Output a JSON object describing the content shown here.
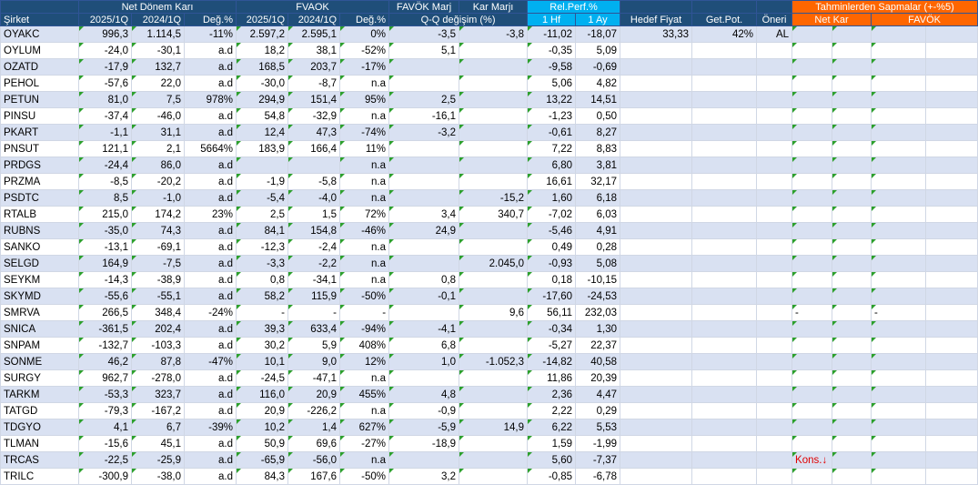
{
  "headers": {
    "group": {
      "net_kar": "Net Dönem Karı",
      "favok": "FVAOK",
      "favok_marj": "FAVÖK Marj",
      "kar_marj": "Kar Marjı",
      "rel_perf": "Rel.Perf.%",
      "tahmin": "Tahminlerden Sapmalar (+-%5)"
    },
    "sub": {
      "sirket": "Şirket",
      "q1_2025": "2025/1Q",
      "q1_2024": "2024/1Q",
      "deg": "Değ.%",
      "fq1_2025": "2025/1Q",
      "fq1_2024": "2024/1Q",
      "fdeg": "Değ.%",
      "qq": "Q-Q değişim (%)",
      "hf1": "1 Hf",
      "ay1": "1 Ay",
      "hedef": "Hedef Fiyat",
      "getpot": "Get.Pot.",
      "oneri": "Öneri",
      "netkar": "Net Kar",
      "favok2": "FAVÖK"
    }
  },
  "rows": [
    {
      "name": "OYAKC",
      "nk25": "996,3",
      "nk24": "1.114,5",
      "nkd": "-11%",
      "fv25": "2.597,2",
      "fv24": "2.595,1",
      "fvd": "0%",
      "fm": "-3,5",
      "km": "-3,8",
      "hf": "-11,02",
      "ay": "-18,07",
      "hedef": "33,33",
      "getpot": "42%",
      "oneri": "AL",
      "netkar": "",
      "favok": ""
    },
    {
      "name": "OYLUM",
      "nk25": "-24,0",
      "nk24": "-30,1",
      "nkd": "a.d",
      "fv25": "18,2",
      "fv24": "38,1",
      "fvd": "-52%",
      "fm": "5,1",
      "km": "",
      "hf": "-0,35",
      "ay": "5,09",
      "hedef": "",
      "getpot": "",
      "oneri": "",
      "netkar": "",
      "favok": ""
    },
    {
      "name": "OZATD",
      "nk25": "-17,9",
      "nk24": "132,7",
      "nkd": "a.d",
      "fv25": "168,5",
      "fv24": "203,7",
      "fvd": "-17%",
      "fm": "",
      "km": "",
      "hf": "-9,58",
      "ay": "-0,69",
      "hedef": "",
      "getpot": "",
      "oneri": "",
      "netkar": "",
      "favok": ""
    },
    {
      "name": "PEHOL",
      "nk25": "-57,6",
      "nk24": "22,0",
      "nkd": "a.d",
      "fv25": "-30,0",
      "fv24": "-8,7",
      "fvd": "n.a",
      "fm": "",
      "km": "",
      "hf": "5,06",
      "ay": "4,82",
      "hedef": "",
      "getpot": "",
      "oneri": "",
      "netkar": "",
      "favok": ""
    },
    {
      "name": "PETUN",
      "nk25": "81,0",
      "nk24": "7,5",
      "nkd": "978%",
      "fv25": "294,9",
      "fv24": "151,4",
      "fvd": "95%",
      "fm": "2,5",
      "km": "",
      "hf": "13,22",
      "ay": "14,51",
      "hedef": "",
      "getpot": "",
      "oneri": "",
      "netkar": "",
      "favok": ""
    },
    {
      "name": "PINSU",
      "nk25": "-37,4",
      "nk24": "-46,0",
      "nkd": "a.d",
      "fv25": "54,8",
      "fv24": "-32,9",
      "fvd": "n.a",
      "fm": "-16,1",
      "km": "",
      "hf": "-1,23",
      "ay": "0,50",
      "hedef": "",
      "getpot": "",
      "oneri": "",
      "netkar": "",
      "favok": ""
    },
    {
      "name": "PKART",
      "nk25": "-1,1",
      "nk24": "31,1",
      "nkd": "a.d",
      "fv25": "12,4",
      "fv24": "47,3",
      "fvd": "-74%",
      "fm": "-3,2",
      "km": "",
      "hf": "-0,61",
      "ay": "8,27",
      "hedef": "",
      "getpot": "",
      "oneri": "",
      "netkar": "",
      "favok": ""
    },
    {
      "name": "PNSUT",
      "nk25": "121,1",
      "nk24": "2,1",
      "nkd": "5664%",
      "fv25": "183,9",
      "fv24": "166,4",
      "fvd": "11%",
      "fm": "",
      "km": "",
      "hf": "7,22",
      "ay": "8,83",
      "hedef": "",
      "getpot": "",
      "oneri": "",
      "netkar": "",
      "favok": ""
    },
    {
      "name": "PRDGS",
      "nk25": "-24,4",
      "nk24": "86,0",
      "nkd": "a.d",
      "fv25": "",
      "fv24": "",
      "fvd": "n.a",
      "fm": "",
      "km": "",
      "hf": "6,80",
      "ay": "3,81",
      "hedef": "",
      "getpot": "",
      "oneri": "",
      "netkar": "",
      "favok": ""
    },
    {
      "name": "PRZMA",
      "nk25": "-8,5",
      "nk24": "-20,2",
      "nkd": "a.d",
      "fv25": "-1,9",
      "fv24": "-5,8",
      "fvd": "n.a",
      "fm": "",
      "km": "",
      "hf": "16,61",
      "ay": "32,17",
      "hedef": "",
      "getpot": "",
      "oneri": "",
      "netkar": "",
      "favok": ""
    },
    {
      "name": "PSDTC",
      "nk25": "8,5",
      "nk24": "-1,0",
      "nkd": "a.d",
      "fv25": "-5,4",
      "fv24": "-4,0",
      "fvd": "n.a",
      "fm": "",
      "km": "-15,2",
      "hf": "1,60",
      "ay": "6,18",
      "hedef": "",
      "getpot": "",
      "oneri": "",
      "netkar": "",
      "favok": ""
    },
    {
      "name": "RTALB",
      "nk25": "215,0",
      "nk24": "174,2",
      "nkd": "23%",
      "fv25": "2,5",
      "fv24": "1,5",
      "fvd": "72%",
      "fm": "3,4",
      "km": "340,7",
      "hf": "-7,02",
      "ay": "6,03",
      "hedef": "",
      "getpot": "",
      "oneri": "",
      "netkar": "",
      "favok": ""
    },
    {
      "name": "RUBNS",
      "nk25": "-35,0",
      "nk24": "74,3",
      "nkd": "a.d",
      "fv25": "84,1",
      "fv24": "154,8",
      "fvd": "-46%",
      "fm": "24,9",
      "km": "",
      "hf": "-5,46",
      "ay": "4,91",
      "hedef": "",
      "getpot": "",
      "oneri": "",
      "netkar": "",
      "favok": ""
    },
    {
      "name": "SANKO",
      "nk25": "-13,1",
      "nk24": "-69,1",
      "nkd": "a.d",
      "fv25": "-12,3",
      "fv24": "-2,4",
      "fvd": "n.a",
      "fm": "",
      "km": "",
      "hf": "0,49",
      "ay": "0,28",
      "hedef": "",
      "getpot": "",
      "oneri": "",
      "netkar": "",
      "favok": ""
    },
    {
      "name": "SELGD",
      "nk25": "164,9",
      "nk24": "-7,5",
      "nkd": "a.d",
      "fv25": "-3,3",
      "fv24": "-2,2",
      "fvd": "n.a",
      "fm": "",
      "km": "2.045,0",
      "hf": "-0,93",
      "ay": "5,08",
      "hedef": "",
      "getpot": "",
      "oneri": "",
      "netkar": "",
      "favok": ""
    },
    {
      "name": "SEYKM",
      "nk25": "-14,3",
      "nk24": "-38,9",
      "nkd": "a.d",
      "fv25": "0,8",
      "fv24": "-34,1",
      "fvd": "n.a",
      "fm": "0,8",
      "km": "",
      "hf": "0,18",
      "ay": "-10,15",
      "hedef": "",
      "getpot": "",
      "oneri": "",
      "netkar": "",
      "favok": ""
    },
    {
      "name": "SKYMD",
      "nk25": "-55,6",
      "nk24": "-55,1",
      "nkd": "a.d",
      "fv25": "58,2",
      "fv24": "115,9",
      "fvd": "-50%",
      "fm": "-0,1",
      "km": "",
      "hf": "-17,60",
      "ay": "-24,53",
      "hedef": "",
      "getpot": "",
      "oneri": "",
      "netkar": "",
      "favok": ""
    },
    {
      "name": "SMRVA",
      "nk25": "266,5",
      "nk24": "348,4",
      "nkd": "-24%",
      "fv25": "-",
      "fv24": "-",
      "fvd": "-",
      "fm": "",
      "km": "9,6",
      "hf": "56,11",
      "ay": "232,03",
      "hedef": "",
      "getpot": "",
      "oneri": "",
      "netkar": "-",
      "favok": "-"
    },
    {
      "name": "SNICA",
      "nk25": "-361,5",
      "nk24": "202,4",
      "nkd": "a.d",
      "fv25": "39,3",
      "fv24": "633,4",
      "fvd": "-94%",
      "fm": "-4,1",
      "km": "",
      "hf": "-0,34",
      "ay": "1,30",
      "hedef": "",
      "getpot": "",
      "oneri": "",
      "netkar": "",
      "favok": ""
    },
    {
      "name": "SNPAM",
      "nk25": "-132,7",
      "nk24": "-103,3",
      "nkd": "a.d",
      "fv25": "30,2",
      "fv24": "5,9",
      "fvd": "408%",
      "fm": "6,8",
      "km": "",
      "hf": "-5,27",
      "ay": "22,37",
      "hedef": "",
      "getpot": "",
      "oneri": "",
      "netkar": "",
      "favok": ""
    },
    {
      "name": "SONME",
      "nk25": "46,2",
      "nk24": "87,8",
      "nkd": "-47%",
      "fv25": "10,1",
      "fv24": "9,0",
      "fvd": "12%",
      "fm": "1,0",
      "km": "-1.052,3",
      "hf": "-14,82",
      "ay": "40,58",
      "hedef": "",
      "getpot": "",
      "oneri": "",
      "netkar": "",
      "favok": ""
    },
    {
      "name": "SURGY",
      "nk25": "962,7",
      "nk24": "-278,0",
      "nkd": "a.d",
      "fv25": "-24,5",
      "fv24": "-47,1",
      "fvd": "n.a",
      "fm": "",
      "km": "",
      "hf": "11,86",
      "ay": "20,39",
      "hedef": "",
      "getpot": "",
      "oneri": "",
      "netkar": "",
      "favok": ""
    },
    {
      "name": "TARKM",
      "nk25": "-53,3",
      "nk24": "323,7",
      "nkd": "a.d",
      "fv25": "116,0",
      "fv24": "20,9",
      "fvd": "455%",
      "fm": "4,8",
      "km": "",
      "hf": "2,36",
      "ay": "4,47",
      "hedef": "",
      "getpot": "",
      "oneri": "",
      "netkar": "",
      "favok": ""
    },
    {
      "name": "TATGD",
      "nk25": "-79,3",
      "nk24": "-167,2",
      "nkd": "a.d",
      "fv25": "20,9",
      "fv24": "-226,2",
      "fvd": "n.a",
      "fm": "-0,9",
      "km": "",
      "hf": "2,22",
      "ay": "0,29",
      "hedef": "",
      "getpot": "",
      "oneri": "",
      "netkar": "",
      "favok": ""
    },
    {
      "name": "TDGYO",
      "nk25": "4,1",
      "nk24": "6,7",
      "nkd": "-39%",
      "fv25": "10,2",
      "fv24": "1,4",
      "fvd": "627%",
      "fm": "-5,9",
      "km": "14,9",
      "hf": "6,22",
      "ay": "5,53",
      "hedef": "",
      "getpot": "",
      "oneri": "",
      "netkar": "",
      "favok": ""
    },
    {
      "name": "TLMAN",
      "nk25": "-15,6",
      "nk24": "45,1",
      "nkd": "a.d",
      "fv25": "50,9",
      "fv24": "69,6",
      "fvd": "-27%",
      "fm": "-18,9",
      "km": "",
      "hf": "1,59",
      "ay": "-1,99",
      "hedef": "",
      "getpot": "",
      "oneri": "",
      "netkar": "",
      "favok": ""
    },
    {
      "name": "TRCAS",
      "nk25": "-22,5",
      "nk24": "-25,9",
      "nkd": "a.d",
      "fv25": "-65,9",
      "fv24": "-56,0",
      "fvd": "n.a",
      "fm": "",
      "km": "",
      "hf": "5,60",
      "ay": "-7,37",
      "hedef": "",
      "getpot": "",
      "oneri": "",
      "netkar": "Kons.↓",
      "favok": ""
    },
    {
      "name": "TRILC",
      "nk25": "-300,9",
      "nk24": "-38,0",
      "nkd": "a.d",
      "fv25": "84,3",
      "fv24": "167,6",
      "fvd": "-50%",
      "fm": "3,2",
      "km": "",
      "hf": "-0,85",
      "ay": "-6,78",
      "hedef": "",
      "getpot": "",
      "oneri": "",
      "netkar": "",
      "favok": ""
    }
  ]
}
